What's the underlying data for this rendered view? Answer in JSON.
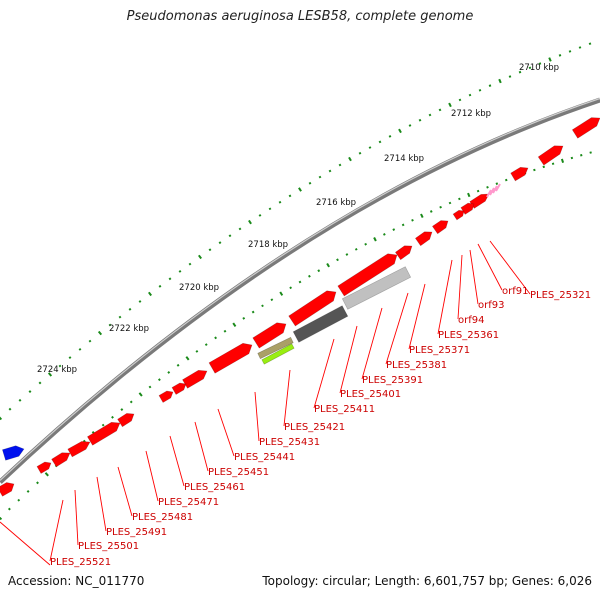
{
  "title": "Pseudomonas aeruginosa LESB58, complete genome",
  "footer": {
    "accession": "Accession: NC_011770",
    "summary": "Topology: circular; Length: 6,601,757 bp; Genes: 6,026"
  },
  "scale_labels": [
    "2710 kbp",
    "2712 kbp",
    "2714 kbp",
    "2716 kbp",
    "2718 kbp",
    "2720 kbp",
    "2722 kbp",
    "2724 kbp"
  ],
  "gene_labels": [
    "PLES_25321",
    "orf91",
    "orf93",
    "orf94",
    "PLES_25361",
    "PLES_25371",
    "PLES_25381",
    "PLES_25391",
    "PLES_25401",
    "PLES_25411",
    "PLES_25421",
    "PLES_25431",
    "PLES_25441",
    "PLES_25451",
    "PLES_25461",
    "PLES_25471",
    "PLES_25481",
    "PLES_25491",
    "PLES_25501",
    "PLES_25521"
  ],
  "colors": {
    "backbone": "#888888",
    "gene_forward": "#ff0000",
    "gene_other": "#0000ff",
    "label": "#cc0000",
    "leader": "#ff0000",
    "tick": "#1a8a1a",
    "rna": "#ff99cc"
  }
}
